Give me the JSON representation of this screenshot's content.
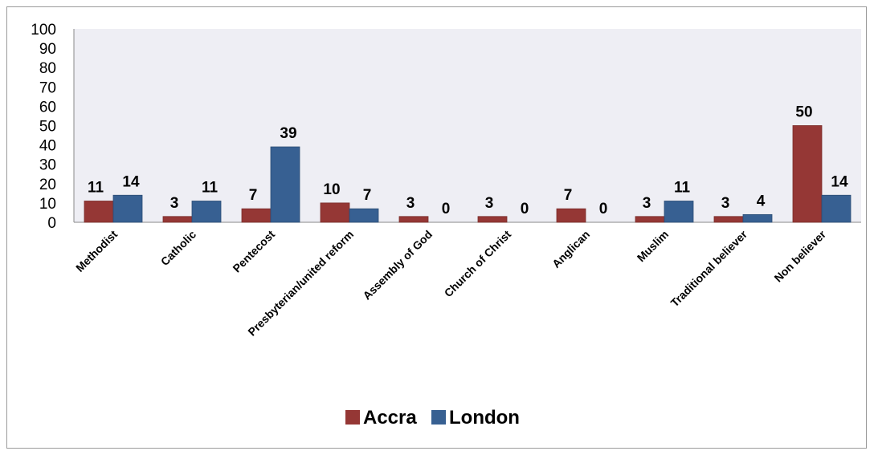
{
  "chart_data": {
    "type": "bar",
    "categories": [
      "Methodist",
      "Catholic",
      "Pentecost",
      "Presbyterian/united reform",
      "Assembly of God",
      "Church of Christ",
      "Anglican",
      "Muslim",
      "Traditional believer",
      "Non believer"
    ],
    "series": [
      {
        "name": "Accra",
        "values": [
          11,
          3,
          7,
          10,
          3,
          3,
          7,
          3,
          3,
          50
        ],
        "color": "#953735"
      },
      {
        "name": "London",
        "values": [
          14,
          11,
          39,
          7,
          0,
          0,
          0,
          11,
          4,
          14
        ],
        "color": "#376092"
      }
    ],
    "yticks": [
      "0",
      "10",
      "20",
      "30",
      "40",
      "50",
      "60",
      "70",
      "80",
      "90",
      "100"
    ],
    "ylim": [
      0,
      100
    ],
    "title": "",
    "xlabel": "",
    "ylabel": "",
    "grid": false,
    "legend": "bottom",
    "data_labels": true,
    "plot_background": "#eeeef4"
  }
}
